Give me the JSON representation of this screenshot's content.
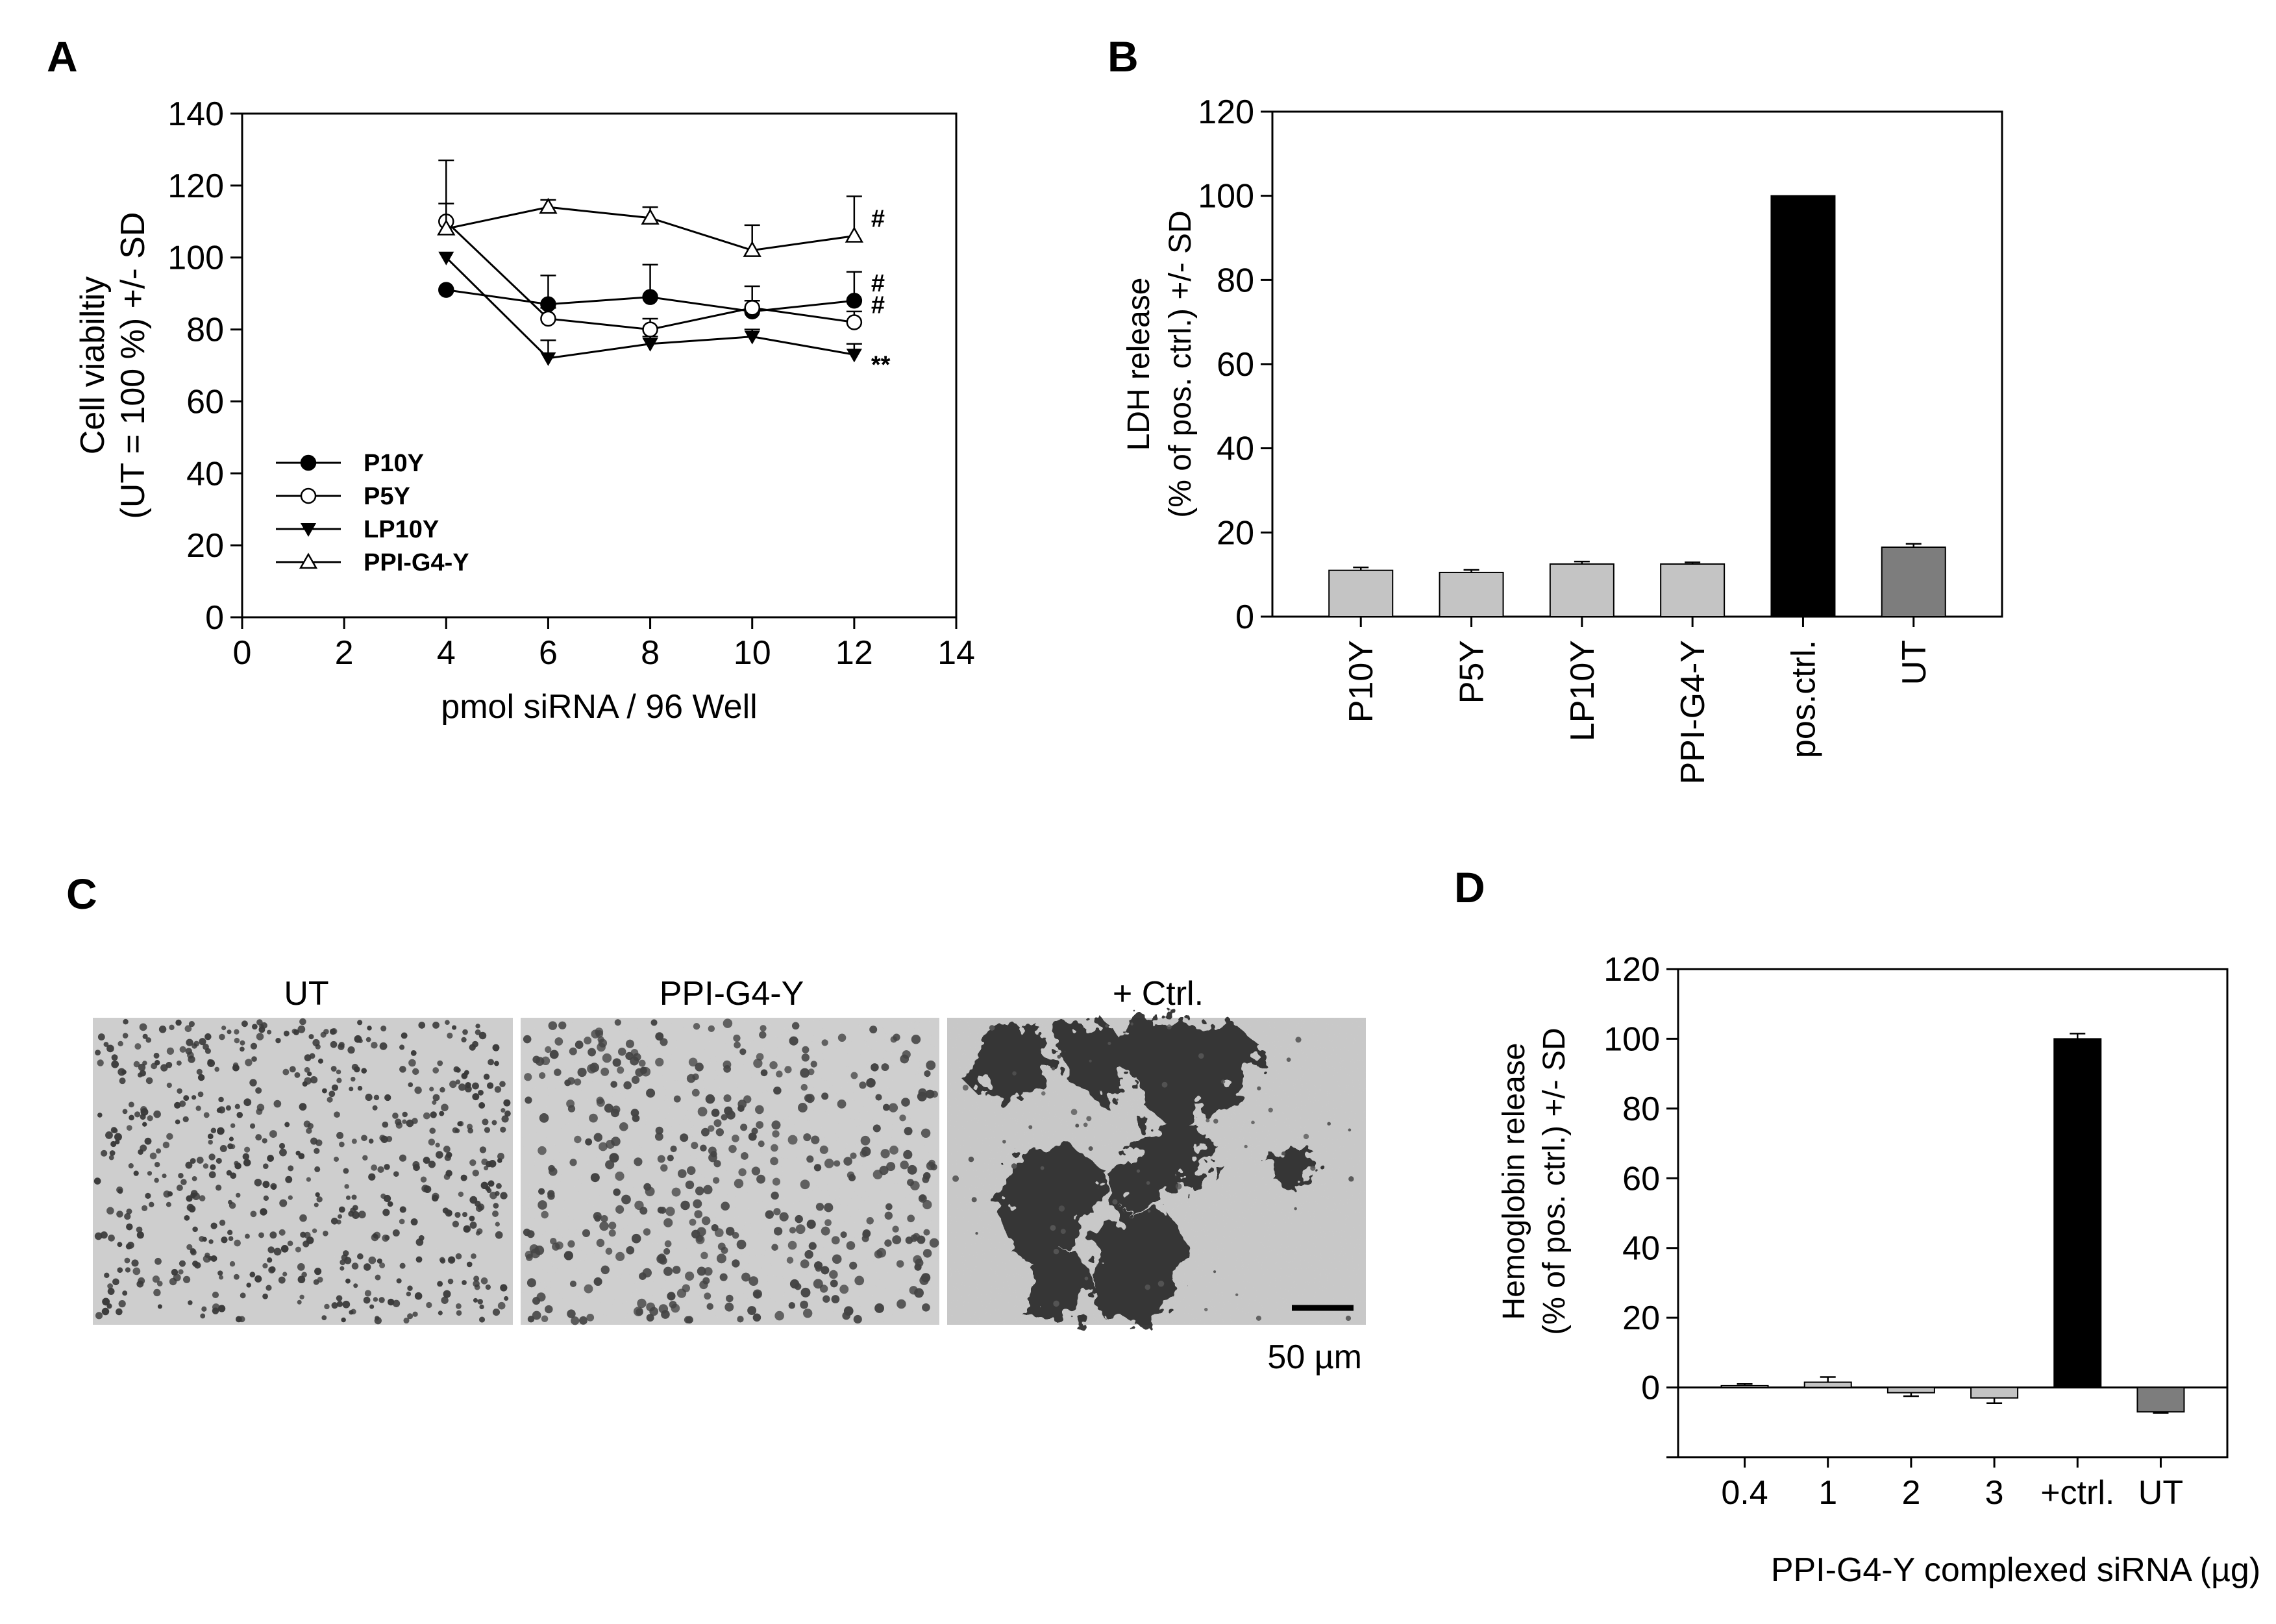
{
  "panels": {
    "A": "A",
    "B": "B",
    "C": "C",
    "D": "D"
  },
  "chart_data": [
    {
      "panel": "A",
      "type": "line",
      "xlabel": "pmol siRNA / 96 Well",
      "ylabel_line1": "Cell viabiltiy",
      "ylabel_line2": "(UT = 100 %) +/- SD",
      "xlim": [
        0,
        14
      ],
      "ylim": [
        0,
        140
      ],
      "xticks": [
        0,
        2,
        4,
        6,
        8,
        10,
        12,
        14
      ],
      "yticks": [
        0,
        20,
        40,
        60,
        80,
        100,
        120,
        140
      ],
      "x": [
        4,
        6,
        8,
        10,
        12
      ],
      "series": [
        {
          "name": "P10Y",
          "marker": "filled-circle",
          "values": [
            91,
            87,
            89,
            85,
            88
          ],
          "err": [
            0,
            8,
            9,
            3,
            8
          ],
          "annotation": "#"
        },
        {
          "name": "P5Y",
          "marker": "open-circle",
          "values": [
            110,
            83,
            80,
            86,
            82
          ],
          "err": [
            17,
            3,
            3,
            6,
            3
          ],
          "annotation": "#"
        },
        {
          "name": "LP10Y",
          "marker": "filled-triangle-down",
          "values": [
            100,
            72,
            76,
            78,
            73
          ],
          "err": [
            0,
            5,
            2,
            2,
            3
          ],
          "annotation": "**"
        },
        {
          "name": "PPI-G4-Y",
          "marker": "open-triangle-up",
          "values": [
            108,
            114,
            111,
            102,
            106
          ],
          "err": [
            7,
            2,
            3,
            7,
            11
          ],
          "annotation": "#"
        }
      ]
    },
    {
      "panel": "B",
      "type": "bar",
      "ylabel_line1": "LDH release",
      "ylabel_line2": "(% of pos. ctrl.) +/- SD",
      "ylim": [
        0,
        120
      ],
      "yticks": [
        0,
        20,
        40,
        60,
        80,
        100,
        120
      ],
      "categories": [
        "P10Y",
        "P5Y",
        "LP10Y",
        "PPI-G4-Y",
        "pos.ctrl.",
        "UT"
      ],
      "values": [
        11,
        10.5,
        12.5,
        12.5,
        100,
        16.5
      ],
      "err": [
        0.7,
        0.6,
        0.6,
        0.4,
        0,
        0.8
      ],
      "colors": [
        "#c4c4c4",
        "#c4c4c4",
        "#c4c4c4",
        "#c4c4c4",
        "#000000",
        "#7d7d7d"
      ]
    },
    {
      "panel": "D",
      "type": "bar",
      "ylabel_line1": "Hemoglobin release",
      "ylabel_line2": "(% of pos. ctrl.) +/- SD",
      "xlabel": "PPI-G4-Y complexed siRNA (µg)",
      "ylim": [
        -20,
        120
      ],
      "yticks": [
        0,
        20,
        40,
        60,
        80,
        100,
        120
      ],
      "categories": [
        "0.4",
        "1",
        "2",
        "3",
        "+ctrl.",
        "UT"
      ],
      "values": [
        0.5,
        1.5,
        -1.5,
        -3,
        100,
        -7
      ],
      "err": [
        0.5,
        1.5,
        1.0,
        1.5,
        1.5,
        0.3
      ],
      "colors": [
        "#c4c4c4",
        "#c4c4c4",
        "#c4c4c4",
        "#c4c4c4",
        "#000000",
        "#7d7d7d"
      ]
    }
  ],
  "micrographs": {
    "labels": [
      "UT",
      "PPI-G4-Y",
      "+ Ctrl."
    ],
    "scale_bar": "50 µm"
  },
  "colors": {
    "bar_light": "#c4c4c4",
    "bar_black": "#000000",
    "bar_dark": "#7d7d7d",
    "micro_bg": "#c9c9c9"
  }
}
